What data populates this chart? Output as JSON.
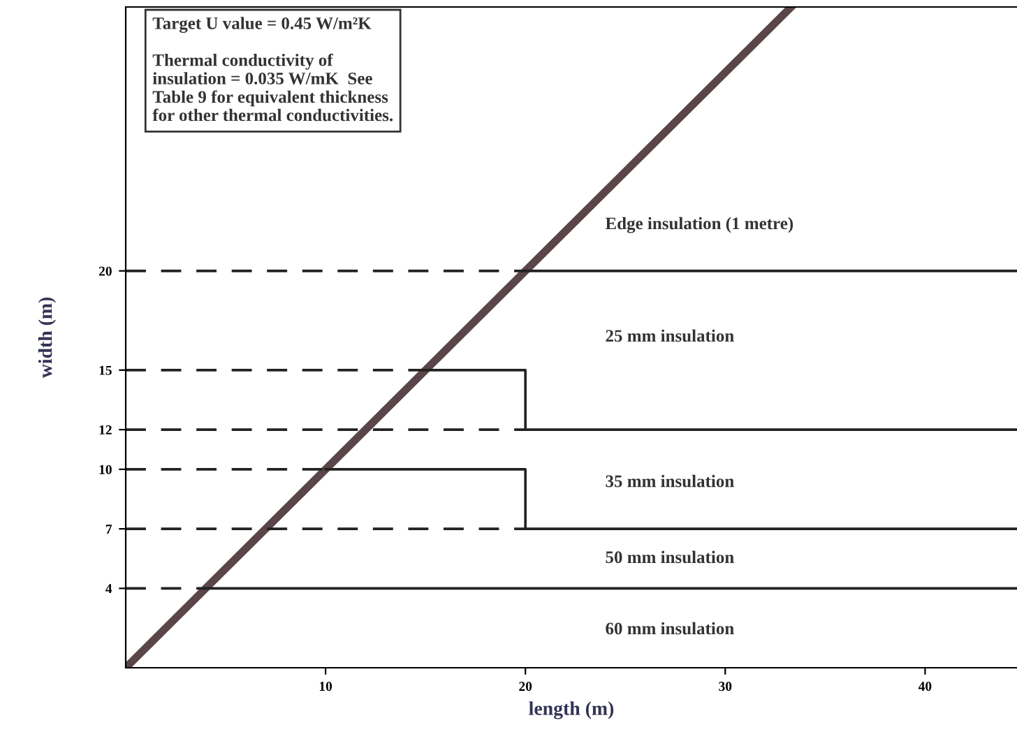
{
  "chart_data": {
    "type": "line",
    "xlabel": "length (m)",
    "ylabel": "width (m)",
    "xlim": [
      0,
      44.6
    ],
    "ylim": [
      0,
      33.3
    ],
    "xticks": [
      10,
      20,
      30,
      40
    ],
    "yticks": [
      4,
      7,
      10,
      12,
      15,
      20
    ],
    "grid": false,
    "legend": false,
    "marker": "none",
    "series": [
      {
        "x": [
          0,
          33.3
        ],
        "values": [
          0,
          33.3
        ],
        "color": "#5a4548",
        "line_style": "solid"
      },
      {
        "x": [
          0,
          20
        ],
        "values": [
          20,
          20
        ],
        "color": "#222222",
        "line_style": "dashed"
      },
      {
        "x": [
          20,
          44.6
        ],
        "values": [
          20,
          20
        ],
        "color": "#222222",
        "line_style": "solid"
      },
      {
        "x": [
          0,
          20
        ],
        "values": [
          12,
          12
        ],
        "color": "#222222",
        "line_style": "dashed"
      },
      {
        "x": [
          0,
          15
        ],
        "values": [
          15,
          15
        ],
        "color": "#222222",
        "line_style": "dashed"
      },
      {
        "x": [
          15,
          20,
          20,
          44.6
        ],
        "values": [
          15,
          15,
          12,
          12
        ],
        "color": "#222222",
        "line_style": "solid"
      },
      {
        "x": [
          0,
          20
        ],
        "values": [
          7,
          7
        ],
        "color": "#222222",
        "line_style": "dashed"
      },
      {
        "x": [
          0,
          10
        ],
        "values": [
          10,
          10
        ],
        "color": "#222222",
        "line_style": "dashed"
      },
      {
        "x": [
          10,
          20,
          20,
          44.6
        ],
        "values": [
          10,
          10,
          7,
          7
        ],
        "color": "#222222",
        "line_style": "solid"
      },
      {
        "x": [
          0,
          4
        ],
        "values": [
          4,
          4
        ],
        "color": "#222222",
        "line_style": "dashed"
      },
      {
        "x": [
          4,
          44.6
        ],
        "values": [
          4,
          4
        ],
        "color": "#222222",
        "line_style": "solid"
      }
    ],
    "annotations": [
      "Target U value = 0.45 W/m²K\n\nThermal conductivity of\ninsulation = 0.035 W/mK  See\nTable 9 for equivalent thickness\nfor other thermal conductivities.",
      "Edge insulation (1 metre)",
      "25 mm insulation",
      "35 mm insulation",
      "50 mm insulation",
      "60 mm insulation"
    ]
  }
}
